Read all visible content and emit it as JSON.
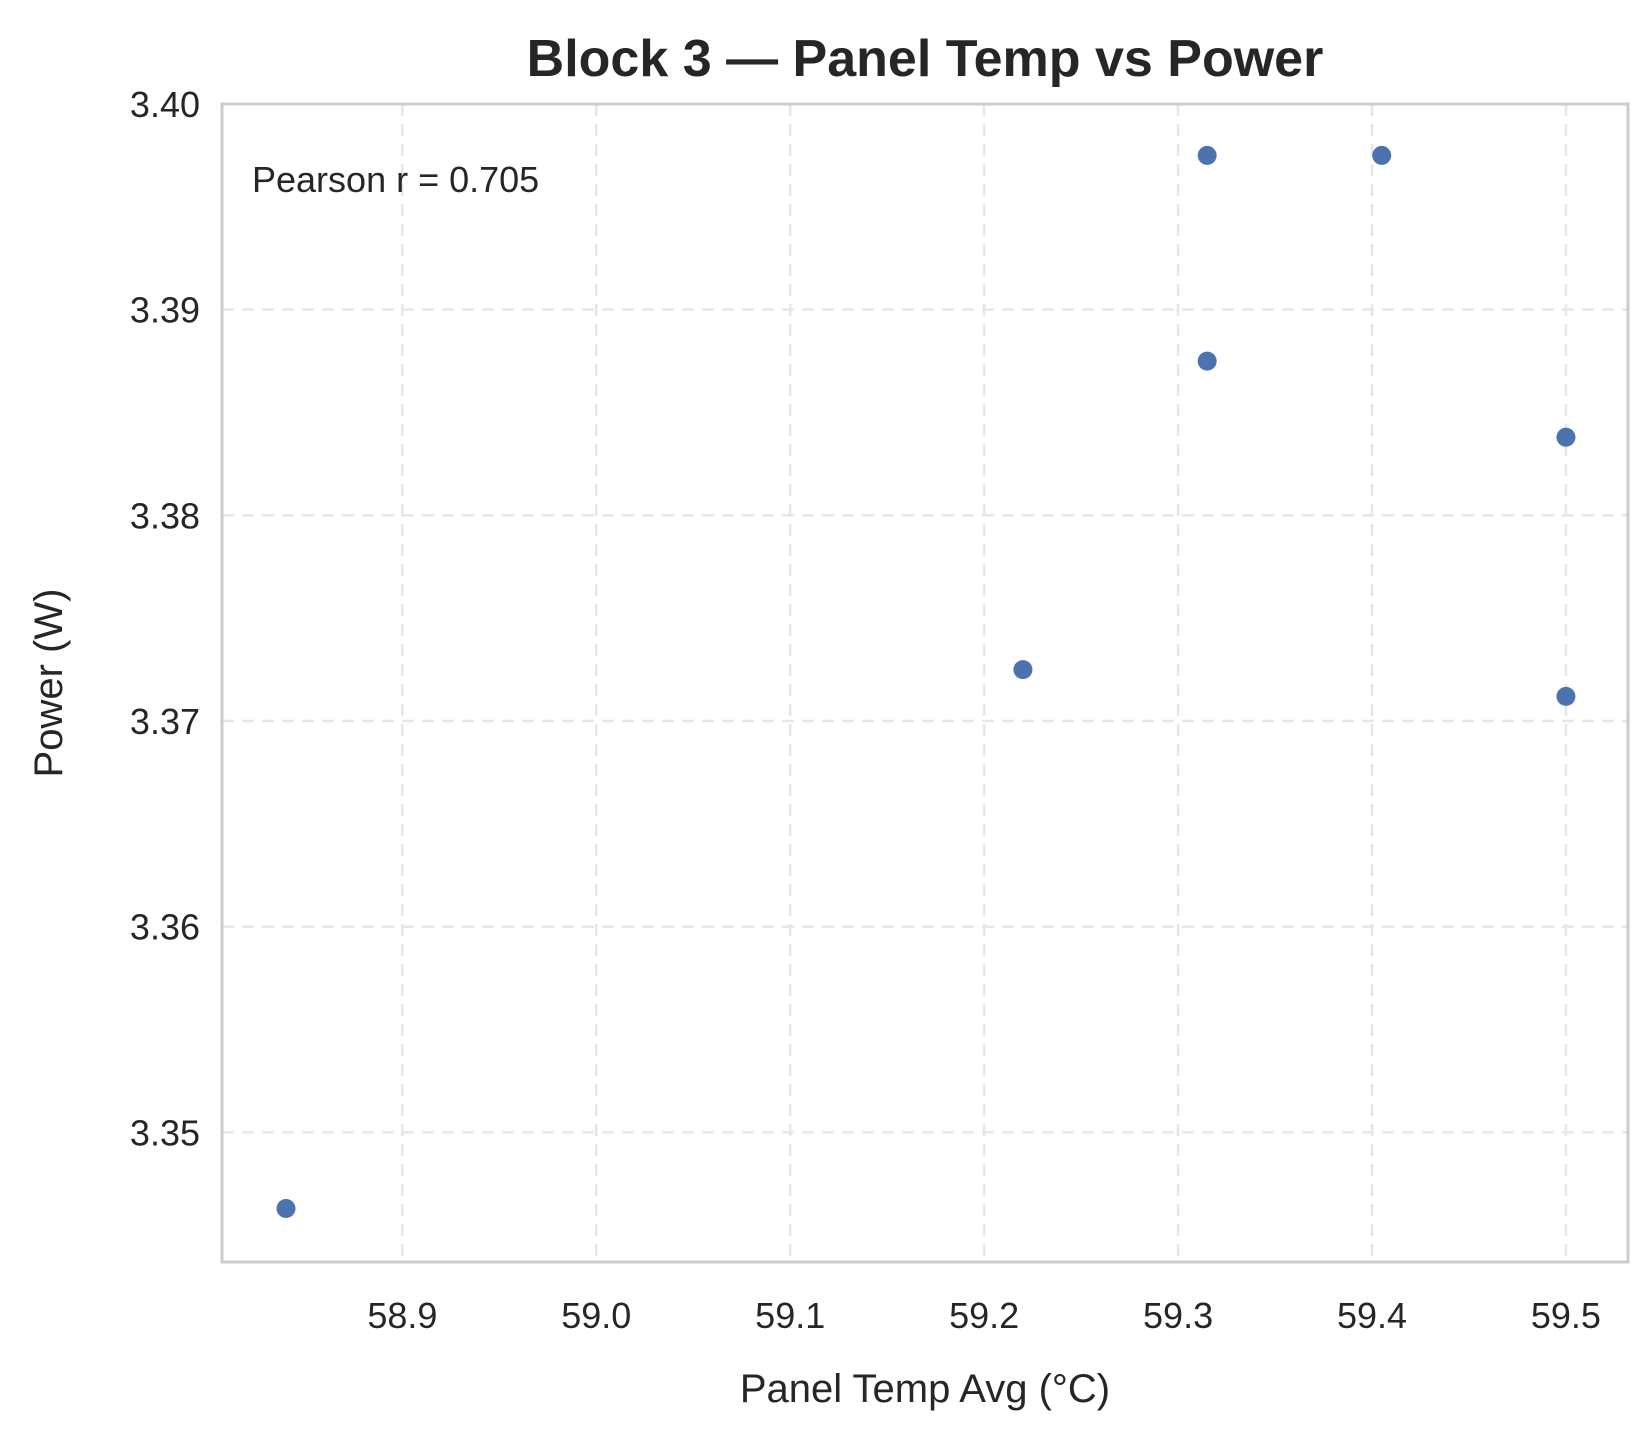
{
  "chart_data": {
    "type": "scatter",
    "title": "Block 3 — Panel Temp vs Power",
    "xlabel": "Panel Temp Avg (°C)",
    "ylabel": "Power (W)",
    "xlim": [
      58.807,
      59.532
    ],
    "ylim": [
      3.3437,
      3.4
    ],
    "xticks": [
      58.9,
      59.0,
      59.1,
      59.2,
      59.3,
      59.4,
      59.5
    ],
    "xtick_labels": [
      "58.9",
      "59.0",
      "59.1",
      "59.2",
      "59.3",
      "59.4",
      "59.5"
    ],
    "yticks": [
      3.35,
      3.36,
      3.37,
      3.38,
      3.39,
      3.4
    ],
    "ytick_labels": [
      "3.35",
      "3.36",
      "3.37",
      "3.38",
      "3.39",
      "3.40"
    ],
    "grid": true,
    "annotation": "Pearson r = 0.705",
    "point_color": "#4c72b0",
    "points": [
      {
        "x": 58.84,
        "y": 3.3463
      },
      {
        "x": 59.22,
        "y": 3.3725
      },
      {
        "x": 59.315,
        "y": 3.3975
      },
      {
        "x": 59.315,
        "y": 3.3875
      },
      {
        "x": 59.405,
        "y": 3.3975
      },
      {
        "x": 59.5,
        "y": 3.3838
      },
      {
        "x": 59.5,
        "y": 3.3712
      }
    ]
  }
}
